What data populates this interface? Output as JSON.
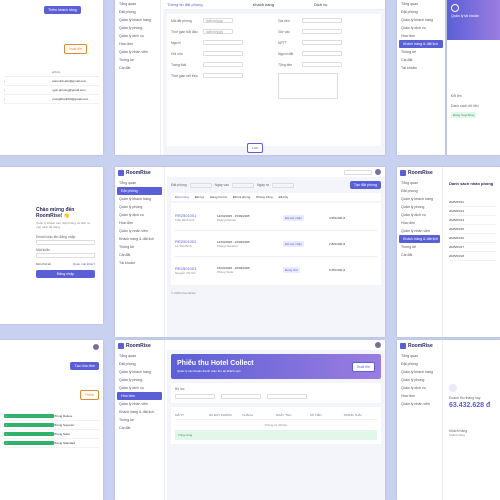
{
  "colors": {
    "accent": "#5b5fd6",
    "green": "#2fb36b",
    "orange": "#e58a2b",
    "bg": "#c8d2f0"
  },
  "app_name": "RoomRise",
  "nav": {
    "items": [
      "Tổng quan",
      "Đặt phòng",
      "Quản lý khách hàng",
      "Quản lý phòng",
      "Quản lý dịch vụ",
      "Hóa đơn",
      "Quản lý nhân viên",
      "Khách hàng & đặt lịch",
      "Thống kê",
      "Cài đặt",
      "Tài khoản"
    ],
    "active": "Khách hàng & đặt lịch"
  },
  "tile_a": {
    "button": "Thêm khách hàng",
    "filter_btn": "Xuất file",
    "col_email": "EMAIL",
    "emails": [
      "tuanminh.abc@gmail.com",
      "ngoc.phuong@gmail.com",
      "truongkhanh94@gmail.com"
    ]
  },
  "tile_b": {
    "tabs": [
      "Thông tin đặt phòng",
      "Khách hàng",
      "Dịch vụ"
    ],
    "fields": [
      "Mã đặt phòng",
      "Thời gian bắt đầu",
      "Người",
      "Ghi chú",
      "Trạng thái",
      "Thời gian kết thúc"
    ],
    "fields_right": [
      "Giá tiền",
      "Giờ vào",
      "NPTT",
      "Người đặt",
      "Tổng tiền",
      "Số tiền"
    ],
    "date": "dd/mm/yyyy",
    "footer": [
      "Loại phòng",
      "Trạng thái",
      "Loại giá",
      "Kênh bán"
    ],
    "save": "Lưu"
  },
  "tile_c": {
    "nav": [
      "Tổng quan",
      "Đặt phòng",
      "Quản lý khách hàng",
      "Quản lý dịch vụ",
      "Hóa đơn",
      "Khách hàng & đặt lịch",
      "Thống kê",
      "Cài đặt",
      "Tài khoản"
    ]
  },
  "tile_d": {
    "title": "Quản lý tài khoản",
    "section": "Đổi tên",
    "sub": "Danh sách dữ liệu",
    "status": "Đang hoạt động"
  },
  "tile_e": {
    "greeting": "Chào mừng đến RoomRise! 👋",
    "desc": "Quản lý khách sạn, đặt phòng và dịch vụ một cách dễ dàng.",
    "email_label": "Email hoặc tên đăng nhập",
    "password_label": "Mật khẩu",
    "remember": "Ghi nhớ tôi",
    "forgot": "Quên mật khẩu?",
    "login": "Đăng nhập"
  },
  "tile_f": {
    "filters": [
      "Đặt phòng",
      "Ngày vào",
      "Ngày ra",
      "Tìm kiếm"
    ],
    "new_btn": "Tạo đặt phòng",
    "tabs": [
      "Đặt phòng",
      "Đã cọc",
      "Đang lưu trú",
      "Đã trả phòng",
      "Phòng trống",
      "Đã hủy"
    ],
    "bookings": [
      {
        "code": "RR2501001",
        "guest": "Trần Minh Anh",
        "phone": "0901234567",
        "dates": "12/03/2025 - 15/03/2025",
        "room": "Phòng Deluxe",
        "status": "Đã xác nhận",
        "price": "4.550.000 đ"
      },
      {
        "code": "RR2501002",
        "guest": "Lê Văn Bình",
        "phone": "0912345678",
        "dates": "14/03/2025 - 16/03/2025",
        "room": "Phòng Superior",
        "status": "Đã xác nhận",
        "price": "2.800.000 đ"
      },
      {
        "code": "RR2501003",
        "guest": "Nguyễn Thị Chi",
        "phone": "0923456789",
        "dates": "15/03/2025 - 18/03/2025",
        "room": "Phòng Suite",
        "status": "Đang chờ",
        "price": "6.250.000 đ"
      }
    ],
    "footer": "© 2025 RoomRise"
  },
  "tile_g": {
    "title": "Danh sách nhân phòng",
    "rows": [
      "2025/03/12",
      "2025/03/13",
      "2025/03/14",
      "2025/03/15",
      "2025/03/16",
      "2025/03/17",
      "2025/03/18"
    ]
  },
  "tile_h": {
    "btn_primary": "Tạo hóa đơn",
    "btn_add": "Thêm",
    "rows": [
      "Phòng Deluxe",
      "Phòng Superior",
      "Phòng Suite",
      "Phòng Standard"
    ]
  },
  "tile_i": {
    "banner_title": "Phiếu thu Hotel Collect",
    "banner_sub": "Quản lý các khoản thanh toán thu tại khách sạn",
    "banner_btn": "Xuất file",
    "section": "Bộ lọc",
    "cols": [
      "MÃ TT",
      "MÃ ĐẶT PHÒNG",
      "KHÁCH",
      "NGÀY THU",
      "SỐ TIỀN",
      "TRẠNG THÁI"
    ],
    "empty": "Không có dữ liệu",
    "total": "Tổng cộng"
  },
  "tile_j": {
    "stat_label": "Doanh thu tháng này",
    "stat_value": "63.432.628 đ",
    "sub_label": "Khách hàng",
    "sub_value": "Khách hàng"
  }
}
